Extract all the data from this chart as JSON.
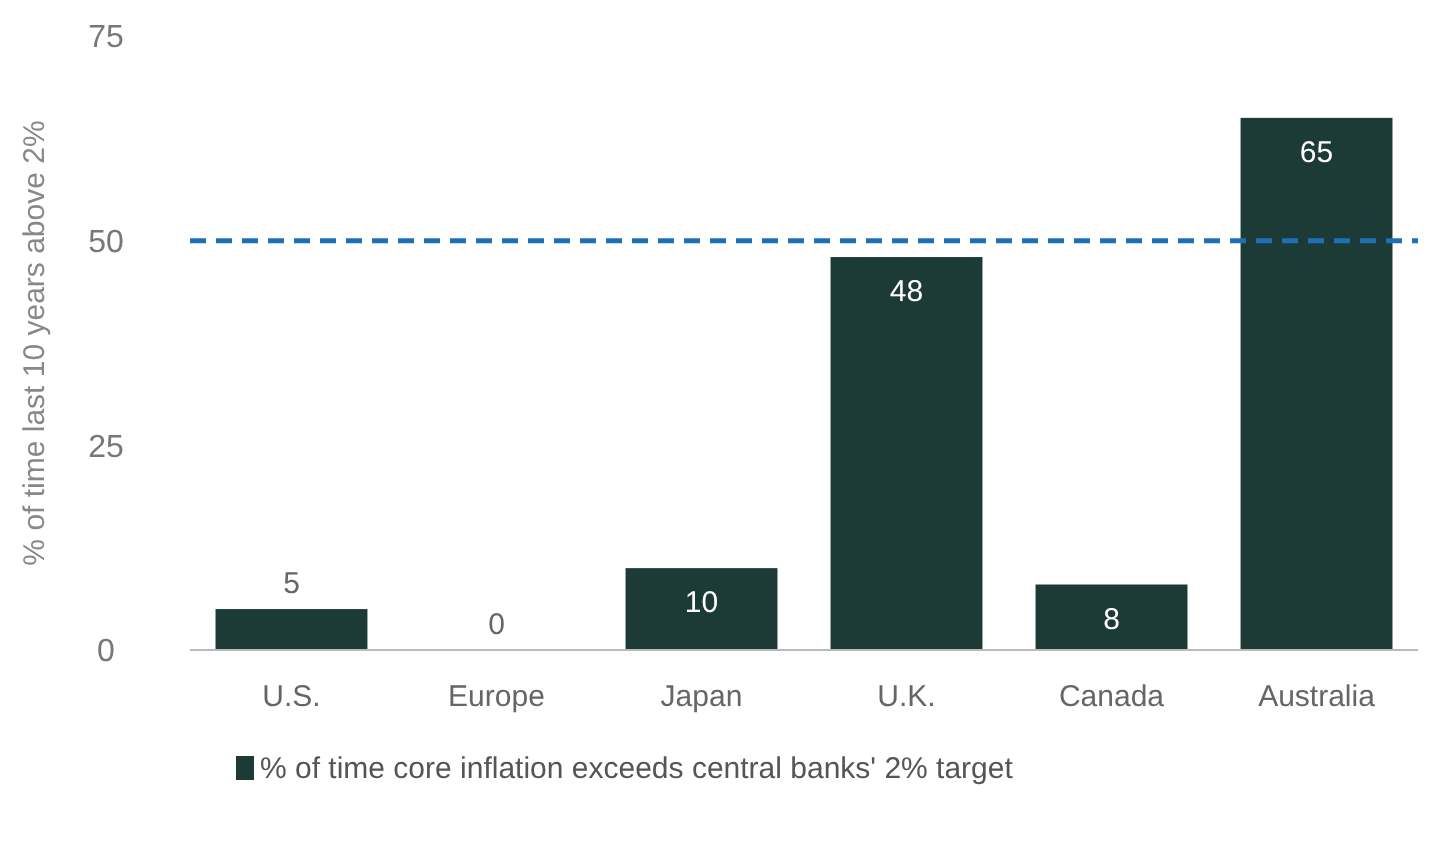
{
  "chart_data": {
    "type": "bar",
    "ylabel": "% of time last 10 years above 2%",
    "categories": [
      "U.S.",
      "Europe",
      "Japan",
      "U.K.",
      "Canada",
      "Australia"
    ],
    "series": [
      {
        "name": "% of time core inflation exceeds central banks' 2% target",
        "color": "#1c3b36",
        "values": [
          5,
          0,
          10,
          48,
          8,
          65
        ]
      }
    ],
    "ylim": [
      0,
      75
    ],
    "yticks": [
      0,
      25,
      50,
      75
    ],
    "data_labels": true,
    "legend": "bottom",
    "ref_lines": [
      {
        "axis": "y",
        "value": 50,
        "color": "#1f6fb5",
        "line_style": "dashed"
      }
    ]
  }
}
